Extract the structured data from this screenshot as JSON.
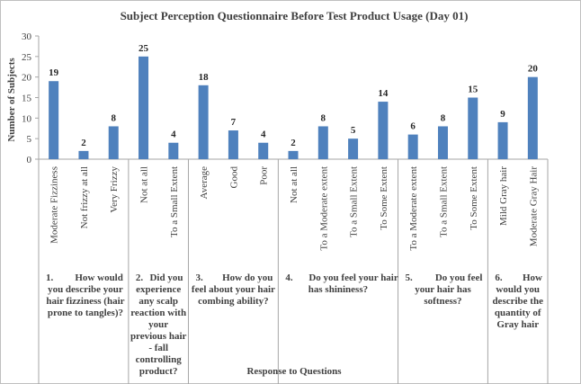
{
  "chart_data": {
    "type": "bar",
    "title": "Subject Perception Questionnaire Before Test Product Usage (Day 01)",
    "xlabel": "Response to Questions",
    "ylabel": "Number  of Subjects",
    "ylim": [
      0,
      30
    ],
    "yticks": [
      0,
      5,
      10,
      15,
      20,
      25,
      30
    ],
    "grid": false,
    "bar_color": "#4f81bd",
    "categories": [
      "Moderate Fizziness",
      "Not frizzy at all",
      "Very Frizzy",
      "Not at all",
      "To a Small Extent",
      "Average",
      "Good",
      "Poor",
      "Not at all",
      "To a Moderate extent",
      "To a Small Extent",
      "To Some Extent",
      "To a Moderate extent",
      "To a Small Extent",
      "To Some Extent",
      "Mild Gray hair",
      "Moderate Gray Hair"
    ],
    "values": [
      19,
      2,
      8,
      25,
      4,
      18,
      7,
      4,
      2,
      8,
      5,
      14,
      6,
      8,
      15,
      9,
      20
    ],
    "groups": [
      {
        "num": "1.",
        "lines": [
          "How would",
          "you describe your",
          "hair fizziness (hair",
          "prone to tangles)?"
        ],
        "size": 3
      },
      {
        "num": "2.",
        "lines": [
          "Did you",
          "experience",
          "any scalp",
          "reaction with",
          "your",
          "previous hair",
          "- fall",
          "controlling",
          "product?"
        ],
        "size": 2
      },
      {
        "num": "3.",
        "lines": [
          "How do you",
          "feel about your hair",
          "combing ability?"
        ],
        "size": 3
      },
      {
        "num": "4.",
        "lines": [
          "Do you feel your hair",
          "has shininess?"
        ],
        "size": 4
      },
      {
        "num": "5.",
        "lines": [
          "Do you feel",
          "your hair has",
          "softness?"
        ],
        "size": 3
      },
      {
        "num": "6.",
        "lines": [
          "How",
          "would you",
          "describe the",
          "quantity of",
          "Gray hair"
        ],
        "size": 2
      }
    ]
  }
}
